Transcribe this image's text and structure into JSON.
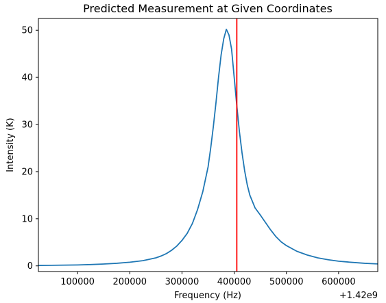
{
  "chart_data": {
    "type": "line",
    "title": "Predicted Measurement at Given Coordinates",
    "xlabel": "Frequency (Hz)",
    "ylabel": "Intensity (K)",
    "x_offset_label": "+1.42e9",
    "xlim": [
      25000,
      675000
    ],
    "ylim": [
      -1.2,
      52.5
    ],
    "grid": false,
    "x_ticks": [
      100000,
      200000,
      300000,
      400000,
      500000,
      600000
    ],
    "x_tick_labels": [
      "100000",
      "200000",
      "300000",
      "400000",
      "500000",
      "600000"
    ],
    "y_ticks": [
      0,
      10,
      20,
      30,
      40,
      50
    ],
    "y_tick_labels": [
      "0",
      "10",
      "20",
      "30",
      "40",
      "50"
    ],
    "series": [
      {
        "color": "#1f77b4",
        "x": [
          25000,
          50000,
          75000,
          100000,
          125000,
          150000,
          175000,
          200000,
          225000,
          250000,
          260000,
          270000,
          280000,
          290000,
          300000,
          310000,
          320000,
          330000,
          340000,
          350000,
          355000,
          360000,
          365000,
          370000,
          375000,
          380000,
          385000,
          390000,
          395000,
          400000,
          405000,
          410000,
          415000,
          420000,
          425000,
          430000,
          440000,
          450000,
          460000,
          470000,
          480000,
          490000,
          500000,
          520000,
          540000,
          560000,
          580000,
          600000,
          625000,
          650000,
          675000
        ],
        "y": [
          0.1,
          0.12,
          0.16,
          0.2,
          0.28,
          0.4,
          0.55,
          0.78,
          1.1,
          1.7,
          2.1,
          2.6,
          3.3,
          4.2,
          5.4,
          6.9,
          9.0,
          12.0,
          15.8,
          21.0,
          25.0,
          29.5,
          34.5,
          40.0,
          44.8,
          48.2,
          50.2,
          49.0,
          46.0,
          40.0,
          34.0,
          28.5,
          24.0,
          20.2,
          17.2,
          15.0,
          12.3,
          10.8,
          9.2,
          7.6,
          6.2,
          5.1,
          4.3,
          3.1,
          2.3,
          1.7,
          1.3,
          1.0,
          0.75,
          0.55,
          0.42
        ]
      }
    ],
    "vline": {
      "x": 405000,
      "color": "#ff0000"
    }
  }
}
